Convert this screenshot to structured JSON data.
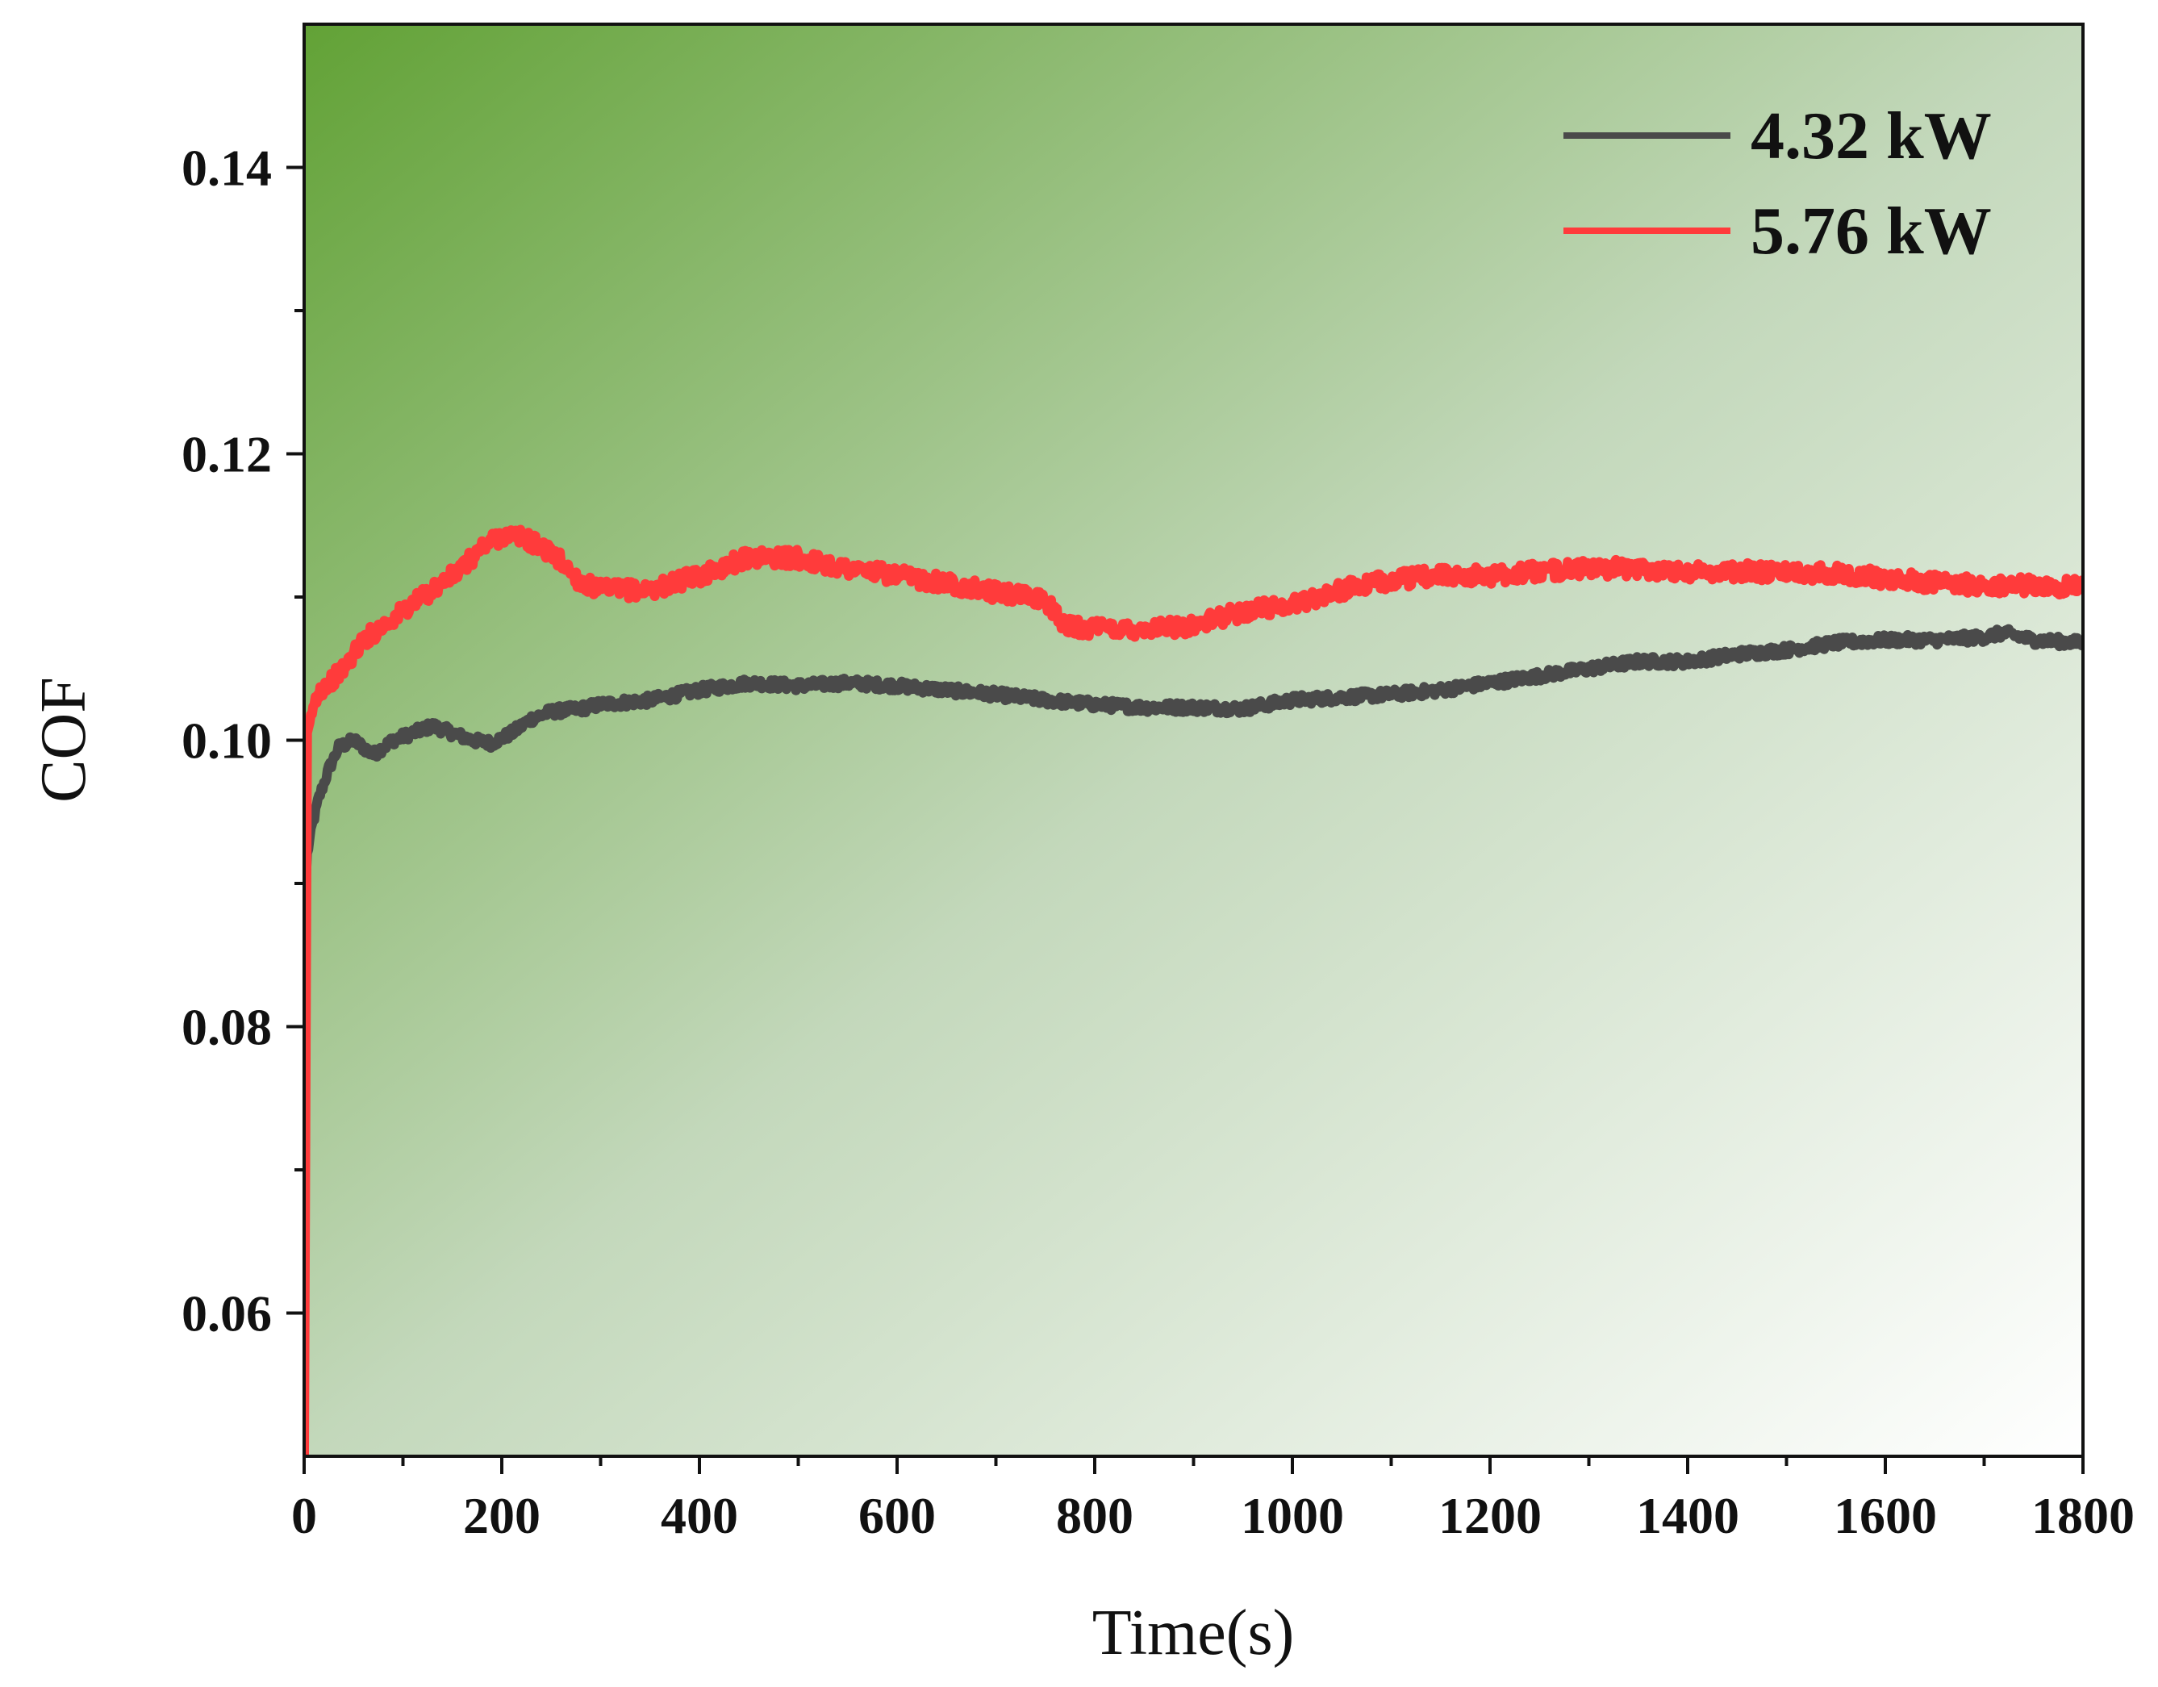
{
  "chart_data": {
    "type": "line",
    "xlabel": "Time(s)",
    "ylabel": "COF",
    "xlim": [
      0,
      1800
    ],
    "ylim": [
      0.05,
      0.15
    ],
    "x_ticks": [
      0,
      200,
      400,
      600,
      800,
      1000,
      1200,
      1400,
      1600,
      1800
    ],
    "x_tick_labels": [
      "0",
      "200",
      "400",
      "600",
      "800",
      "1000",
      "1200",
      "1400",
      "1600",
      "1800"
    ],
    "y_ticks": [
      0.06,
      0.08,
      0.1,
      0.12,
      0.14
    ],
    "y_tick_labels": [
      "0.06",
      "0.08",
      "0.10",
      "0.12",
      "0.14"
    ],
    "grid": false,
    "legend_position": "top-right",
    "background": "gradient",
    "colors": {
      "background_start": "#62a236",
      "background_end": "#ffffff"
    },
    "series": [
      {
        "name": "4.32 kW",
        "color": "#4a4a4a",
        "x": [
          0,
          3,
          8,
          15,
          25,
          35,
          50,
          70,
          90,
          110,
          130,
          150,
          170,
          190,
          210,
          230,
          250,
          280,
          300,
          350,
          400,
          450,
          500,
          550,
          600,
          650,
          700,
          750,
          800,
          850,
          900,
          950,
          1000,
          1050,
          1100,
          1150,
          1200,
          1250,
          1300,
          1350,
          1400,
          1450,
          1500,
          1550,
          1600,
          1650,
          1700,
          1720,
          1750,
          1800
        ],
        "y": [
          0.087,
          0.092,
          0.094,
          0.096,
          0.098,
          0.0995,
          0.1,
          0.099,
          0.1,
          0.1005,
          0.101,
          0.1005,
          0.1,
          0.0998,
          0.1005,
          0.1015,
          0.102,
          0.1022,
          0.1025,
          0.1028,
          0.1035,
          0.104,
          0.1038,
          0.104,
          0.1038,
          0.1035,
          0.1032,
          0.1028,
          0.1025,
          0.1023,
          0.1023,
          0.1022,
          0.1028,
          0.103,
          0.1032,
          0.1035,
          0.104,
          0.1045,
          0.105,
          0.1055,
          0.1055,
          0.106,
          0.1063,
          0.1068,
          0.107,
          0.107,
          0.1072,
          0.1075,
          0.107,
          0.1068
        ]
      },
      {
        "name": "5.76 kW",
        "color": "#ff3b3b",
        "x": [
          0,
          3,
          8,
          15,
          25,
          40,
          60,
          80,
          100,
          120,
          140,
          160,
          180,
          200,
          220,
          240,
          260,
          280,
          300,
          350,
          400,
          450,
          500,
          550,
          600,
          650,
          700,
          750,
          770,
          800,
          850,
          900,
          950,
          1000,
          1050,
          1100,
          1150,
          1200,
          1250,
          1300,
          1350,
          1400,
          1450,
          1500,
          1550,
          1600,
          1650,
          1700,
          1750,
          1800
        ],
        "y": [
          0.05,
          0.1,
          0.102,
          0.1035,
          0.104,
          0.105,
          0.107,
          0.108,
          0.109,
          0.11,
          0.111,
          0.112,
          0.1135,
          0.1143,
          0.1142,
          0.1135,
          0.1125,
          0.111,
          0.1105,
          0.1105,
          0.1115,
          0.1128,
          0.1127,
          0.112,
          0.1115,
          0.111,
          0.1103,
          0.1098,
          0.108,
          0.1078,
          0.1078,
          0.108,
          0.109,
          0.1095,
          0.1105,
          0.1112,
          0.1115,
          0.1115,
          0.1118,
          0.112,
          0.112,
          0.1118,
          0.1118,
          0.1117,
          0.1117,
          0.1113,
          0.111,
          0.1108,
          0.1108,
          0.1107
        ]
      }
    ]
  }
}
